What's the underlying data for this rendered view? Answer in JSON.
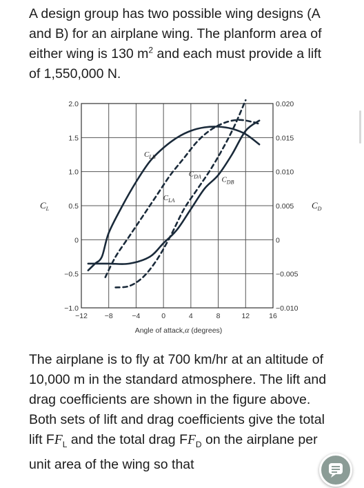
{
  "question": {
    "intro_1": "A design group has two possible wing designs (A and B) for an airplane wing. The planform area of either wing is 130 m",
    "intro_sup": "2",
    "intro_2": " and each must provide a lift of 1,550,000 N.",
    "body_1": "The airplane is to fly at 700 km/hr at an altitude of 10,000 m in the standard atmosphere. The lift and drag coefficients are shown in the figure above. Both sets of lift and drag coefficients give the total lift F",
    "fl_sub": "L",
    "body_2": " and the total drag F",
    "fd_sub": "D",
    "body_3": " on the airplane per unit area of the wing so that"
  },
  "chart_data": {
    "type": "line",
    "xlabel": "Angle of attack,",
    "xlabel_symbol": "α",
    "xlabel_unit": " (degrees)",
    "x_ticks": [
      "−12",
      "−8",
      "−4",
      "0",
      "4",
      "8",
      "12",
      "16"
    ],
    "x_tick_values": [
      -12,
      -8,
      -4,
      0,
      4,
      8,
      12,
      16
    ],
    "xlim": [
      -12,
      16
    ],
    "left_axis": {
      "label": "C",
      "label_sub": "L",
      "ylim": [
        -1.0,
        2.0
      ],
      "ticks": [
        "2.0",
        "1.5",
        "1.0",
        "0.5",
        "0",
        "−0.5",
        "−1.0"
      ],
      "tick_values": [
        2.0,
        1.5,
        1.0,
        0.5,
        0,
        -0.5,
        -1.0
      ]
    },
    "right_axis": {
      "label": "C",
      "label_sub": "D",
      "ylim": [
        -0.01,
        0.02
      ],
      "ticks": [
        "0.020",
        "0.015",
        "0.010",
        "0.005",
        "0",
        "−0.005",
        "−0.010"
      ],
      "tick_values": [
        0.02,
        0.015,
        0.01,
        0.005,
        0,
        -0.005,
        -0.01
      ]
    },
    "grid": true,
    "series": [
      {
        "name": "C",
        "sub": "LB",
        "axis": "left",
        "style": "solid",
        "x": [
          -11,
          -10,
          -9,
          -8,
          -6,
          -4,
          -2,
          0,
          2,
          4,
          6,
          8,
          10,
          12,
          14
        ],
        "y": [
          -0.45,
          -0.35,
          -0.25,
          0.1,
          0.5,
          0.85,
          1.15,
          1.35,
          1.5,
          1.6,
          1.65,
          1.66,
          1.63,
          1.55,
          1.4
        ]
      },
      {
        "name": "C",
        "sub": "LA",
        "axis": "left",
        "style": "dashed",
        "x": [
          -8.5,
          -7,
          -5,
          -3,
          -1,
          1,
          3,
          5,
          7,
          9,
          11,
          13,
          14
        ],
        "y": [
          -0.55,
          -0.25,
          0.05,
          0.35,
          0.65,
          0.95,
          1.2,
          1.45,
          1.62,
          1.72,
          1.76,
          1.73,
          1.7
        ]
      },
      {
        "name": "C",
        "sub": "DA",
        "axis": "right",
        "style": "dashed",
        "x": [
          -7,
          -5,
          -3,
          -1,
          1,
          3,
          5,
          7,
          9,
          10.5,
          12
        ],
        "y": [
          -0.007,
          -0.0068,
          -0.0055,
          -0.003,
          0.0005,
          0.0045,
          0.0075,
          0.0105,
          0.014,
          0.017,
          0.0205
        ]
      },
      {
        "name": "C",
        "sub": "DB",
        "axis": "right",
        "style": "solid",
        "x": [
          -11,
          -8,
          -5,
          -2,
          0,
          2,
          4,
          6,
          8,
          10,
          12,
          14
        ],
        "y": [
          -0.0035,
          -0.0035,
          -0.0035,
          -0.0025,
          -0.0005,
          0.0015,
          0.0045,
          0.0075,
          0.0095,
          0.0125,
          0.016,
          0.0175
        ]
      }
    ],
    "curve_labels": [
      {
        "sub": "LB",
        "x": -2.0,
        "y": 1.22
      },
      {
        "sub": "LA",
        "x": 0.8,
        "y": 0.58
      },
      {
        "sub": "DA",
        "x": 4.6,
        "y": 0.0093
      },
      {
        "sub": "DB",
        "x": 9.4,
        "y": 0.0085
      }
    ]
  }
}
